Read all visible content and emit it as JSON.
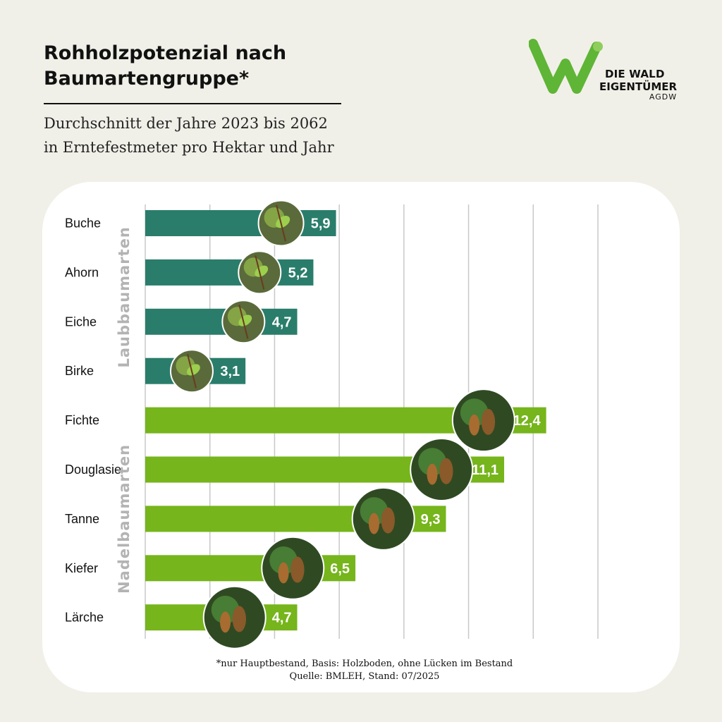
{
  "header": {
    "title": "Rohholzpotenzial nach\nBaumartengruppe*",
    "subtitle": "Durchschnitt der Jahre 2023 bis 2062\nin Erntefestmeter pro Hektar und Jahr"
  },
  "logo": {
    "line1": "DIE WALD",
    "line2": "EIGENTÜMER",
    "line3": "AGDW"
  },
  "colors": {
    "background": "#f1f0e8",
    "laubbaum_bar": "#2a7d6b",
    "nadelbaum_bar": "#76b51b",
    "logo_green": "#5fb536",
    "grid": "#c8c8c8",
    "group_label": "#b3b3b3"
  },
  "chart_data": {
    "type": "bar",
    "orientation": "horizontal",
    "categories": [
      "Buche",
      "Ahorn",
      "Eiche",
      "Birke",
      "Fichte",
      "Douglasie",
      "Tanne",
      "Kiefer",
      "Lärche"
    ],
    "values": [
      5.9,
      5.2,
      4.7,
      3.1,
      12.4,
      11.1,
      9.3,
      6.5,
      4.7
    ],
    "value_labels": [
      "5,9",
      "5,2",
      "4,7",
      "3,1",
      "12,4",
      "11,1",
      "9,3",
      "6,5",
      "4,7"
    ],
    "groups": [
      {
        "name": "Laubbaumarten",
        "categories": [
          "Buche",
          "Ahorn",
          "Eiche",
          "Birke"
        ],
        "color": "#2a7d6b"
      },
      {
        "name": "Nadelbaumarten",
        "categories": [
          "Fichte",
          "Douglasie",
          "Tanne",
          "Kiefer",
          "Lärche"
        ],
        "color": "#76b51b"
      }
    ],
    "xlim": [
      0,
      14
    ],
    "grid": true,
    "tick_labels_shown": false,
    "photos": [
      "beech-leaf-icon",
      "maple-seed-icon",
      "oak-acorn-icon",
      "birch-leaf-icon",
      "spruce-cone-icon",
      "douglas-fir-cone-icon",
      "fir-branch-icon",
      "pine-cone-icon",
      "larch-cone-icon"
    ]
  },
  "footnote": {
    "line1": "*nur Hauptbestand, Basis: Holzboden, ohne Lücken im Bestand",
    "line2": "Quelle: BMLEH, Stand: 07/2025"
  }
}
